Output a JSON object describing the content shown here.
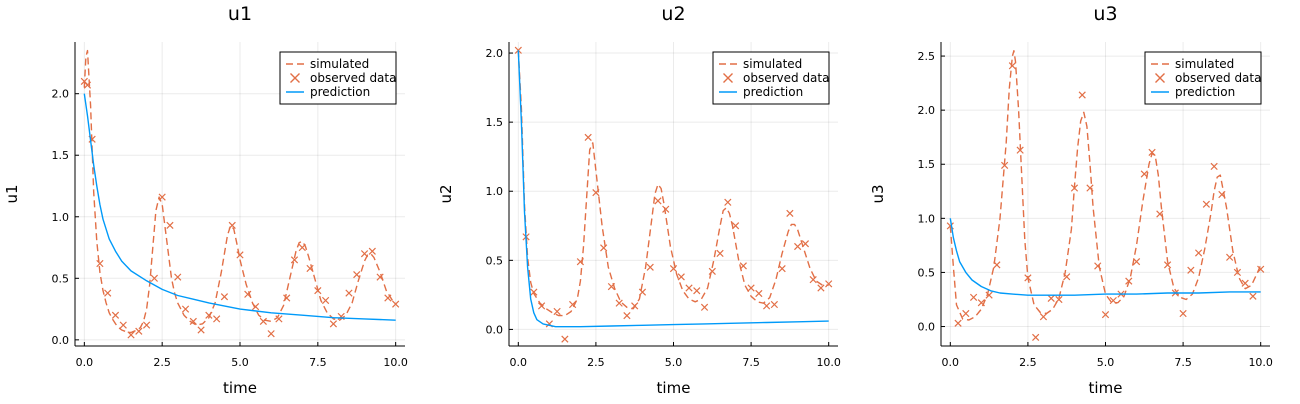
{
  "chart_data": [
    {
      "type": "line",
      "title": "u1",
      "xlabel": "time",
      "ylabel": "u1",
      "xlim": [
        -0.3,
        10.3
      ],
      "ylim": [
        -0.05,
        2.42
      ],
      "xticks": [
        0,
        2.5,
        5,
        7.5,
        10
      ],
      "xtick_labels": [
        "0.0",
        "2.5",
        "5.0",
        "7.5",
        "10.0"
      ],
      "yticks": [
        0,
        0.5,
        1,
        1.5,
        2
      ],
      "ytick_labels": [
        "0.0",
        "0.5",
        "1.0",
        "1.5",
        "2.0"
      ],
      "grid": true,
      "legend_position": "top-right",
      "series": [
        {
          "name": "simulated",
          "style": "dashed",
          "color": "#e26f46",
          "x": [
            0,
            0.05,
            0.1,
            0.2,
            0.3,
            0.4,
            0.5,
            0.6,
            0.7,
            0.8,
            0.9,
            1.0,
            1.1,
            1.2,
            1.3,
            1.4,
            1.5,
            1.6,
            1.7,
            1.8,
            1.9,
            2.0,
            2.1,
            2.2,
            2.3,
            2.4,
            2.5,
            2.6,
            2.7,
            2.8,
            2.9,
            3.0,
            3.2,
            3.4,
            3.6,
            3.8,
            4.0,
            4.2,
            4.4,
            4.6,
            4.7,
            4.8,
            4.9,
            5.0,
            5.2,
            5.4,
            5.6,
            5.8,
            6.0,
            6.2,
            6.4,
            6.6,
            6.8,
            6.9,
            7.0,
            7.1,
            7.2,
            7.4,
            7.6,
            7.8,
            8.0,
            8.2,
            8.4,
            8.6,
            8.8,
            9.0,
            9.1,
            9.2,
            9.3,
            9.5,
            9.7,
            9.9,
            10.0
          ],
          "values": [
            2.05,
            2.3,
            2.35,
            1.9,
            1.2,
            0.8,
            0.55,
            0.4,
            0.3,
            0.22,
            0.17,
            0.13,
            0.1,
            0.08,
            0.07,
            0.06,
            0.06,
            0.07,
            0.08,
            0.1,
            0.15,
            0.25,
            0.45,
            0.75,
            1.05,
            1.16,
            1.1,
            0.9,
            0.7,
            0.5,
            0.38,
            0.3,
            0.2,
            0.15,
            0.12,
            0.13,
            0.18,
            0.3,
            0.55,
            0.85,
            0.93,
            0.9,
            0.78,
            0.65,
            0.45,
            0.3,
            0.2,
            0.16,
            0.15,
            0.18,
            0.28,
            0.5,
            0.72,
            0.79,
            0.8,
            0.76,
            0.68,
            0.5,
            0.32,
            0.22,
            0.17,
            0.16,
            0.2,
            0.3,
            0.48,
            0.64,
            0.69,
            0.7,
            0.67,
            0.55,
            0.4,
            0.32,
            0.3
          ]
        },
        {
          "name": "observed data",
          "style": "markers",
          "color": "#e26f46",
          "x": [
            0,
            0.1,
            0.25,
            0.5,
            0.75,
            1.0,
            1.25,
            1.5,
            1.75,
            2.0,
            2.25,
            2.5,
            2.75,
            3.0,
            3.25,
            3.5,
            3.75,
            4.0,
            4.25,
            4.5,
            4.75,
            5.0,
            5.25,
            5.5,
            5.75,
            6.0,
            6.25,
            6.5,
            6.75,
            7.0,
            7.25,
            7.5,
            7.75,
            8.0,
            8.25,
            8.5,
            8.75,
            9.0,
            9.25,
            9.5,
            9.75,
            10.0
          ],
          "values": [
            2.1,
            2.07,
            1.63,
            0.62,
            0.38,
            0.2,
            0.12,
            0.04,
            0.07,
            0.12,
            0.5,
            1.16,
            0.93,
            0.51,
            0.25,
            0.15,
            0.08,
            0.2,
            0.17,
            0.35,
            0.93,
            0.69,
            0.37,
            0.27,
            0.15,
            0.05,
            0.17,
            0.34,
            0.65,
            0.75,
            0.58,
            0.4,
            0.32,
            0.13,
            0.19,
            0.38,
            0.53,
            0.7,
            0.72,
            0.51,
            0.34,
            0.29
          ]
        },
        {
          "name": "prediction",
          "style": "solid",
          "color": "#009af9",
          "x": [
            0,
            0.1,
            0.2,
            0.3,
            0.4,
            0.5,
            0.6,
            0.7,
            0.8,
            1.0,
            1.2,
            1.5,
            2.0,
            2.5,
            3.0,
            3.5,
            4.0,
            5.0,
            6.0,
            7.0,
            8.0,
            9.0,
            10.0
          ],
          "values": [
            2.0,
            1.82,
            1.62,
            1.42,
            1.25,
            1.1,
            0.98,
            0.9,
            0.82,
            0.72,
            0.64,
            0.56,
            0.48,
            0.41,
            0.36,
            0.33,
            0.3,
            0.25,
            0.22,
            0.2,
            0.18,
            0.17,
            0.16
          ]
        }
      ]
    },
    {
      "type": "line",
      "title": "u2",
      "xlabel": "time",
      "ylabel": "u2",
      "xlim": [
        -0.3,
        10.3
      ],
      "ylim": [
        -0.12,
        2.08
      ],
      "xticks": [
        0,
        2.5,
        5,
        7.5,
        10
      ],
      "xtick_labels": [
        "0.0",
        "2.5",
        "5.0",
        "7.5",
        "10.0"
      ],
      "yticks": [
        0,
        0.5,
        1,
        1.5,
        2
      ],
      "ytick_labels": [
        "0.0",
        "0.5",
        "1.0",
        "1.5",
        "2.0"
      ],
      "grid": true,
      "legend_position": "top-right",
      "series": [
        {
          "name": "simulated",
          "style": "dashed",
          "color": "#e26f46",
          "x": [
            0,
            0.1,
            0.2,
            0.3,
            0.4,
            0.5,
            0.7,
            0.9,
            1.1,
            1.3,
            1.5,
            1.7,
            1.9,
            2.0,
            2.1,
            2.2,
            2.3,
            2.4,
            2.5,
            2.7,
            2.9,
            3.1,
            3.3,
            3.5,
            3.7,
            3.9,
            4.1,
            4.3,
            4.4,
            4.5,
            4.6,
            4.7,
            4.9,
            5.1,
            5.3,
            5.5,
            5.7,
            5.9,
            6.1,
            6.3,
            6.5,
            6.6,
            6.7,
            6.8,
            6.9,
            7.1,
            7.3,
            7.5,
            7.7,
            7.9,
            8.1,
            8.3,
            8.5,
            8.7,
            8.8,
            8.9,
            9.0,
            9.2,
            9.4,
            9.6,
            9.8,
            10.0
          ],
          "values": [
            2.02,
            1.6,
            0.9,
            0.52,
            0.34,
            0.26,
            0.19,
            0.15,
            0.12,
            0.1,
            0.1,
            0.13,
            0.22,
            0.35,
            0.6,
            0.95,
            1.3,
            1.35,
            1.15,
            0.75,
            0.45,
            0.3,
            0.2,
            0.16,
            0.15,
            0.22,
            0.45,
            0.8,
            0.98,
            1.05,
            1.02,
            0.9,
            0.6,
            0.4,
            0.28,
            0.22,
            0.2,
            0.22,
            0.3,
            0.5,
            0.75,
            0.86,
            0.88,
            0.84,
            0.75,
            0.5,
            0.32,
            0.24,
            0.2,
            0.19,
            0.23,
            0.36,
            0.55,
            0.71,
            0.76,
            0.76,
            0.72,
            0.58,
            0.44,
            0.35,
            0.32,
            0.32
          ]
        },
        {
          "name": "observed data",
          "style": "markers",
          "color": "#e26f46",
          "x": [
            0,
            0.25,
            0.5,
            0.75,
            1.0,
            1.25,
            1.5,
            1.75,
            2.0,
            2.25,
            2.5,
            2.75,
            3.0,
            3.25,
            3.5,
            3.75,
            4.0,
            4.25,
            4.5,
            4.75,
            5.0,
            5.25,
            5.5,
            5.75,
            6.0,
            6.25,
            6.5,
            6.75,
            7.0,
            7.25,
            7.5,
            7.75,
            8.0,
            8.25,
            8.5,
            8.75,
            9.0,
            9.25,
            9.5,
            9.75,
            10.0
          ],
          "values": [
            2.02,
            0.67,
            0.27,
            0.17,
            0.04,
            0.13,
            -0.07,
            0.18,
            0.49,
            1.39,
            0.99,
            0.59,
            0.31,
            0.19,
            0.1,
            0.17,
            0.27,
            0.45,
            0.93,
            0.87,
            0.44,
            0.38,
            0.3,
            0.28,
            0.16,
            0.42,
            0.55,
            0.92,
            0.75,
            0.46,
            0.3,
            0.26,
            0.17,
            0.18,
            0.44,
            0.84,
            0.6,
            0.62,
            0.36,
            0.3,
            0.33
          ]
        },
        {
          "name": "prediction",
          "style": "solid",
          "color": "#009af9",
          "x": [
            0,
            0.1,
            0.2,
            0.3,
            0.4,
            0.5,
            0.6,
            0.8,
            1.0,
            1.2,
            1.5,
            2.0,
            3.0,
            4.0,
            5.0,
            6.0,
            7.0,
            8.0,
            9.0,
            10.0
          ],
          "values": [
            2.02,
            1.5,
            0.85,
            0.45,
            0.22,
            0.12,
            0.07,
            0.04,
            0.03,
            0.02,
            0.02,
            0.02,
            0.025,
            0.03,
            0.035,
            0.04,
            0.045,
            0.05,
            0.055,
            0.06
          ]
        }
      ]
    },
    {
      "type": "line",
      "title": "u3",
      "xlabel": "time",
      "ylabel": "u3",
      "xlim": [
        -0.3,
        10.3
      ],
      "ylim": [
        -0.18,
        2.63
      ],
      "xticks": [
        0,
        2.5,
        5,
        7.5,
        10
      ],
      "xtick_labels": [
        "0.0",
        "2.5",
        "5.0",
        "7.5",
        "10.0"
      ],
      "yticks": [
        0,
        0.5,
        1,
        1.5,
        2,
        2.5
      ],
      "ytick_labels": [
        "0.0",
        "0.5",
        "1.0",
        "1.5",
        "2.0",
        "2.5"
      ],
      "grid": true,
      "legend_position": "top-right",
      "series": [
        {
          "name": "simulated",
          "style": "dashed",
          "color": "#e26f46",
          "x": [
            0,
            0.1,
            0.2,
            0.4,
            0.6,
            0.8,
            1.0,
            1.2,
            1.4,
            1.6,
            1.8,
            1.9,
            2.0,
            2.05,
            2.1,
            2.2,
            2.3,
            2.4,
            2.5,
            2.7,
            2.9,
            3.1,
            3.3,
            3.5,
            3.7,
            3.9,
            4.0,
            4.1,
            4.2,
            4.3,
            4.4,
            4.5,
            4.6,
            4.8,
            5.0,
            5.2,
            5.4,
            5.6,
            5.8,
            6.0,
            6.2,
            6.4,
            6.5,
            6.6,
            6.7,
            6.8,
            7.0,
            7.2,
            7.4,
            7.6,
            7.8,
            8.0,
            8.2,
            8.4,
            8.5,
            8.6,
            8.7,
            8.9,
            9.1,
            9.3,
            9.5,
            9.7,
            9.9,
            10.0
          ],
          "values": [
            0.93,
            0.55,
            0.2,
            0.07,
            0.06,
            0.09,
            0.16,
            0.3,
            0.55,
            1.0,
            1.7,
            2.2,
            2.5,
            2.55,
            2.45,
            2.0,
            1.4,
            0.8,
            0.45,
            0.2,
            0.13,
            0.12,
            0.16,
            0.26,
            0.5,
            0.9,
            1.3,
            1.65,
            1.9,
            1.98,
            1.85,
            1.5,
            1.1,
            0.55,
            0.3,
            0.22,
            0.22,
            0.28,
            0.45,
            0.75,
            1.15,
            1.5,
            1.6,
            1.58,
            1.4,
            1.1,
            0.6,
            0.36,
            0.27,
            0.25,
            0.3,
            0.45,
            0.72,
            1.05,
            1.25,
            1.38,
            1.4,
            1.1,
            0.7,
            0.45,
            0.35,
            0.38,
            0.5,
            0.57
          ]
        },
        {
          "name": "observed data",
          "style": "markers",
          "color": "#e26f46",
          "x": [
            0,
            0.25,
            0.5,
            0.75,
            1.0,
            1.25,
            1.5,
            1.75,
            2.0,
            2.25,
            2.5,
            2.75,
            3.0,
            3.25,
            3.5,
            3.75,
            4.0,
            4.25,
            4.5,
            4.75,
            5.0,
            5.25,
            5.5,
            5.75,
            6.0,
            6.25,
            6.5,
            6.75,
            7.0,
            7.25,
            7.5,
            7.75,
            8.0,
            8.25,
            8.5,
            8.75,
            9.0,
            9.25,
            9.5,
            9.75,
            10.0
          ],
          "values": [
            0.93,
            0.03,
            0.12,
            0.27,
            0.22,
            0.29,
            0.57,
            1.49,
            2.41,
            1.63,
            0.45,
            -0.1,
            0.09,
            0.26,
            0.25,
            0.46,
            1.28,
            2.14,
            1.28,
            0.56,
            0.11,
            0.24,
            0.3,
            0.42,
            0.6,
            1.41,
            1.61,
            1.04,
            0.57,
            0.31,
            0.12,
            0.52,
            0.68,
            1.13,
            1.48,
            1.22,
            0.64,
            0.5,
            0.4,
            0.28,
            0.53
          ]
        },
        {
          "name": "prediction",
          "style": "solid",
          "color": "#009af9",
          "x": [
            0,
            0.1,
            0.2,
            0.3,
            0.5,
            0.7,
            1.0,
            1.3,
            1.6,
            2.0,
            2.5,
            3.0,
            4.0,
            5.0,
            6.0,
            7.0,
            8.0,
            9.0,
            10.0
          ],
          "values": [
            1.0,
            0.82,
            0.7,
            0.6,
            0.5,
            0.43,
            0.37,
            0.33,
            0.31,
            0.3,
            0.29,
            0.29,
            0.29,
            0.3,
            0.3,
            0.31,
            0.31,
            0.32,
            0.32
          ]
        }
      ]
    }
  ]
}
